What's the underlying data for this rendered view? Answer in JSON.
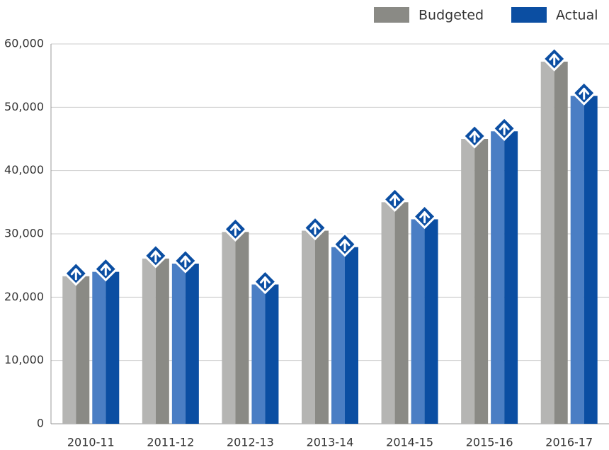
{
  "chart_data": {
    "type": "bar",
    "categories": [
      "2010-11",
      "2011-12",
      "2012-13",
      "2013-14",
      "2014-15",
      "2015-16",
      "2016-17"
    ],
    "series": [
      {
        "name": "Budgeted",
        "color": "#8a8a85",
        "values": [
          23300,
          26100,
          30300,
          30500,
          35000,
          45000,
          57200
        ]
      },
      {
        "name": "Actual",
        "color": "#0b4ea2",
        "values": [
          24000,
          25300,
          22000,
          27900,
          32300,
          46200,
          51800
        ]
      }
    ],
    "ylim": [
      0,
      60000
    ],
    "yticks": [
      0,
      {
        "value": 10000,
        "label": "10,000"
      },
      {
        "value": 20000,
        "label": "20,000"
      },
      {
        "value": 30000,
        "label": "30,000"
      },
      {
        "value": 40000,
        "label": "40,000"
      },
      {
        "value": 50000,
        "label": "50,000"
      },
      {
        "value": 60000,
        "label": "60,000"
      }
    ],
    "grid": true,
    "legend": "top-right"
  }
}
